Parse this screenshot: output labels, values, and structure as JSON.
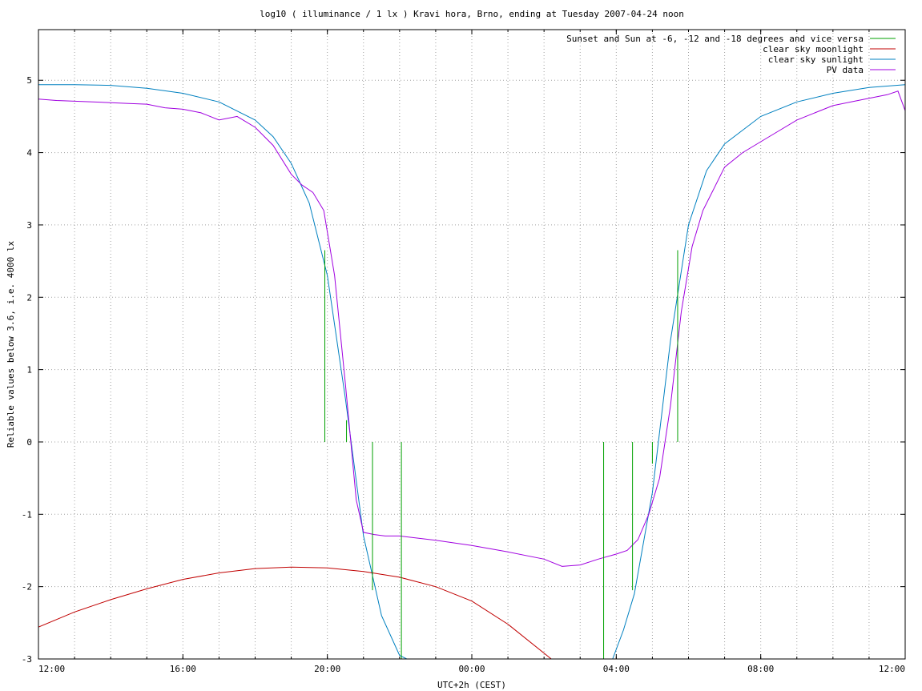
{
  "chart_data": {
    "type": "line",
    "title": "log10 ( illuminance / 1 lx ) Kravi hora, Brno, ending at Tuesday 2007-04-24 noon",
    "xlabel": "UTC+2h (CEST)",
    "ylabel": "Reliable values below 3.6, i.e. 4000 lx",
    "x_unit": "hours from 12:00 (start, Monday 2007-04-23 12:00 CEST)",
    "xlim": [
      0,
      24
    ],
    "ylim": [
      -3,
      5.7
    ],
    "grid": true,
    "legend_position": "top-right",
    "x_tick_labels": [
      "12:00",
      "16:00",
      "20:00",
      "00:00",
      "04:00",
      "08:00",
      "12:00"
    ],
    "x_tick_values": [
      0,
      4,
      8,
      12,
      16,
      20,
      24
    ],
    "y_tick_values": [
      -3,
      -2,
      -1,
      0,
      1,
      2,
      3,
      4,
      5
    ],
    "y_tick_labels": [
      "-3",
      "-2",
      "-1",
      "0",
      "1",
      "2",
      "3",
      "4",
      "5"
    ],
    "series": [
      {
        "name": "Sunset and Sun at -6, -12 and -18 degrees and vice versa",
        "color": "#00a000",
        "style": "impulses",
        "points": [
          {
            "x": 7.93,
            "y0": 0,
            "y1": 2.65
          },
          {
            "x": 8.53,
            "y0": 0,
            "y1": 0.3
          },
          {
            "x": 9.25,
            "y0": 0,
            "y1": -2.05
          },
          {
            "x": 10.05,
            "y0": 0,
            "y1": -3
          },
          {
            "x": 15.65,
            "y0": 0,
            "y1": -3
          },
          {
            "x": 16.45,
            "y0": 0,
            "y1": -2.05
          },
          {
            "x": 17.0,
            "y0": 0,
            "y1": -0.3
          },
          {
            "x": 17.7,
            "y0": 0,
            "y1": 2.65
          }
        ]
      },
      {
        "name": "clear sky moonlight",
        "color": "#c00000",
        "x": [
          0,
          1,
          2,
          3,
          4,
          5,
          6,
          7,
          8,
          9,
          10,
          11,
          12,
          13,
          14.2
        ],
        "y": [
          -2.56,
          -2.35,
          -2.18,
          -2.03,
          -1.9,
          -1.81,
          -1.75,
          -1.73,
          -1.74,
          -1.79,
          -1.87,
          -2.0,
          -2.2,
          -2.52,
          -3.0
        ]
      },
      {
        "name": "clear sky sunlight",
        "color": "#0080c0",
        "x": [
          0,
          1,
          2,
          3,
          4,
          5,
          6,
          6.5,
          7,
          7.5,
          8,
          8.5,
          9,
          9.5,
          10,
          10.2,
          15.9,
          16.2,
          16.5,
          17,
          17.5,
          18,
          18.5,
          19,
          20,
          21,
          22,
          23,
          24
        ],
        "y": [
          4.94,
          4.94,
          4.93,
          4.89,
          4.82,
          4.7,
          4.45,
          4.22,
          3.85,
          3.3,
          2.3,
          0.6,
          -1.3,
          -2.4,
          -2.95,
          -3.0,
          -3.0,
          -2.6,
          -2.1,
          -0.7,
          1.4,
          3.0,
          3.75,
          4.12,
          4.5,
          4.7,
          4.82,
          4.9,
          4.94
        ]
      },
      {
        "name": "PV data",
        "color": "#a000e0",
        "x": [
          0,
          0.5,
          1,
          1.5,
          2,
          2.5,
          3,
          3.5,
          4,
          4.5,
          5,
          5.5,
          6,
          6.5,
          7,
          7.3,
          7.6,
          7.9,
          8.2,
          8.5,
          8.8,
          9.0,
          9.3,
          9.6,
          10,
          11,
          12,
          13,
          14,
          14.5,
          15,
          15.5,
          16,
          16.3,
          16.6,
          16.9,
          17.2,
          17.5,
          17.8,
          18.1,
          18.4,
          18.7,
          19,
          19.5,
          20,
          20.5,
          21,
          21.5,
          22,
          22.5,
          23,
          23.5,
          23.8,
          24
        ],
        "y": [
          4.74,
          4.72,
          4.71,
          4.7,
          4.69,
          4.68,
          4.67,
          4.62,
          4.6,
          4.55,
          4.45,
          4.5,
          4.35,
          4.1,
          3.7,
          3.55,
          3.45,
          3.2,
          2.3,
          0.8,
          -0.8,
          -1.25,
          -1.28,
          -1.3,
          -1.3,
          -1.36,
          -1.43,
          -1.52,
          -1.62,
          -1.72,
          -1.7,
          -1.62,
          -1.55,
          -1.5,
          -1.35,
          -1.0,
          -0.5,
          0.5,
          1.8,
          2.7,
          3.2,
          3.5,
          3.8,
          4.0,
          4.15,
          4.3,
          4.45,
          4.55,
          4.65,
          4.7,
          4.75,
          4.8,
          4.85,
          4.58
        ]
      }
    ]
  }
}
